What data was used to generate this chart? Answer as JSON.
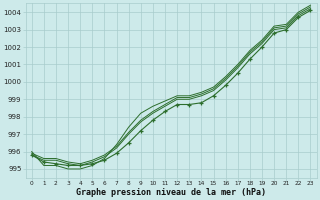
{
  "xlabel": "Graphe pression niveau de la mer (hPa)",
  "ylim": [
    994.5,
    1004.5
  ],
  "xlim": [
    -0.5,
    23.5
  ],
  "yticks": [
    995,
    996,
    997,
    998,
    999,
    1000,
    1001,
    1002,
    1003,
    1004
  ],
  "x_ticks": [
    0,
    1,
    2,
    3,
    4,
    5,
    6,
    7,
    8,
    9,
    10,
    11,
    12,
    13,
    14,
    15,
    16,
    17,
    18,
    19,
    20,
    21,
    22,
    23
  ],
  "bg_color": "#cdeaea",
  "grid_color": "#a8cccc",
  "line_color": "#2d6e2d",
  "line_main": [
    995.8,
    995.4,
    995.3,
    995.2,
    995.2,
    995.3,
    995.5,
    995.9,
    996.5,
    997.2,
    997.8,
    998.3,
    998.7,
    998.7,
    998.8,
    999.2,
    999.8,
    1000.5,
    1001.3,
    1002.0,
    1002.8,
    1003.0,
    1003.7,
    1004.1
  ],
  "line2": [
    995.8,
    995.5,
    995.5,
    995.3,
    995.2,
    995.4,
    995.7,
    996.2,
    997.0,
    997.7,
    998.2,
    998.6,
    999.0,
    999.0,
    999.2,
    999.5,
    1000.1,
    1000.8,
    1001.6,
    1002.2,
    1003.0,
    1003.1,
    1003.8,
    1004.2
  ],
  "line3": [
    995.9,
    995.6,
    995.6,
    995.4,
    995.3,
    995.5,
    995.8,
    996.3,
    997.1,
    997.8,
    998.3,
    998.7,
    999.1,
    999.1,
    999.3,
    999.6,
    1000.2,
    1000.9,
    1001.7,
    1002.3,
    1003.1,
    1003.2,
    1003.9,
    1004.3
  ],
  "line_top": [
    996.0,
    995.2,
    995.2,
    995.0,
    995.0,
    995.2,
    995.6,
    996.4,
    997.4,
    998.2,
    998.6,
    998.9,
    999.2,
    999.2,
    999.4,
    999.7,
    1000.3,
    1001.0,
    1001.8,
    1002.4,
    1003.2,
    1003.3,
    1004.0,
    1004.4
  ]
}
